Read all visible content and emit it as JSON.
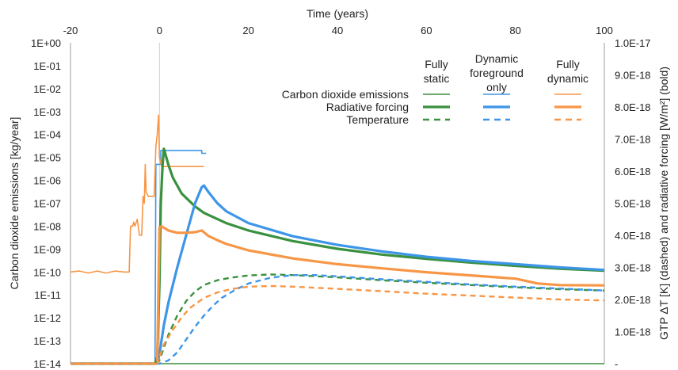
{
  "chart_data": {
    "type": "line",
    "x_axis": {
      "label": "Time (years)",
      "position": "top",
      "range": [
        -20,
        100
      ],
      "ticks": [
        -20,
        0,
        20,
        40,
        60,
        80,
        100
      ],
      "tick_labels": [
        "-20",
        "0",
        "20",
        "40",
        "60",
        "80",
        "100"
      ]
    },
    "y_axis_left": {
      "label": "Carbon dioxide emissions [kg/year]",
      "scale": "log",
      "range": [
        1e-14,
        1
      ],
      "tick_labels": [
        "1E+00",
        "1E-01",
        "1E-02",
        "1E-03",
        "1E-04",
        "1E-05",
        "1E-06",
        "1E-07",
        "1E-08",
        "1E-09",
        "1E-10",
        "1E-11",
        "1E-12",
        "1E-13",
        "1E-14"
      ]
    },
    "y_axis_right": {
      "label": "GTP ΔT [K] (dashed) and radiative forcing [W/m²] (bold)",
      "scale": "linear",
      "range": [
        0,
        1e-17
      ],
      "tick_labels": [
        "1.0E-17",
        "9.0E-18",
        "8.0E-18",
        "7.0E-18",
        "6.0E-18",
        "5.0E-18",
        "4.0E-18",
        "3.0E-18",
        "2.0E-18",
        "1.0E-18",
        "-"
      ]
    },
    "grid": "none",
    "legend": {
      "placement": "top-right",
      "column_headers": [
        "Fully static",
        "Dynamic foreground only",
        "Fully dynamic"
      ],
      "column_header_lines": [
        [
          "Fully",
          "static"
        ],
        [
          "Dynamic",
          "foreground",
          "only"
        ],
        [
          "Fully",
          "dynamic"
        ]
      ],
      "row_labels": [
        "Carbon dioxide emissions",
        "Radiative forcing",
        "Temperature"
      ],
      "colors": [
        "#3a913f",
        "#3d95e8",
        "#f79646"
      ]
    },
    "series": [
      {
        "name": "Carbon dioxide emissions — Fully static",
        "axis": "left",
        "style": "thin",
        "color": "#3a913f",
        "points": [
          [
            -20,
            1e-14
          ],
          [
            100,
            1e-14
          ]
        ]
      },
      {
        "name": "Carbon dioxide emissions — Dynamic foreground only",
        "axis": "left",
        "style": "thin",
        "color": "#3d95e8",
        "points": [
          [
            -20,
            1e-14
          ],
          [
            -1,
            1e-14
          ],
          [
            -0.8,
            5e-06
          ],
          [
            0.3,
            5e-06
          ],
          [
            0.3,
            2e-05
          ],
          [
            9.5,
            2e-05
          ],
          [
            9.5,
            1.5e-05
          ],
          [
            10.5,
            1.5e-05
          ]
        ]
      },
      {
        "name": "Carbon dioxide emissions — Fully dynamic",
        "axis": "left",
        "style": "thin",
        "color": "#f79646",
        "points": [
          [
            -20,
            1e-10
          ],
          [
            -18,
            1.1e-10
          ],
          [
            -16,
            9e-11
          ],
          [
            -14,
            1.1e-10
          ],
          [
            -12,
            9e-11
          ],
          [
            -10,
            1.1e-10
          ],
          [
            -8,
            1e-10
          ],
          [
            -6.8,
            1e-10
          ],
          [
            -6.5,
            1e-08
          ],
          [
            -6,
            1e-08
          ],
          [
            -5.8,
            1.5e-08
          ],
          [
            -5.5,
            1e-08
          ],
          [
            -5,
            2e-08
          ],
          [
            -4.5,
            4e-09
          ],
          [
            -4,
            4e-09
          ],
          [
            -3.7,
            2e-07
          ],
          [
            -3.4,
            1e-07
          ],
          [
            -3.2,
            5e-06
          ],
          [
            -3,
            3e-07
          ],
          [
            -2.5,
            2e-07
          ],
          [
            -1.5,
            2e-07
          ],
          [
            -1.2,
            2e-07
          ],
          [
            -0.8,
            3e-05
          ],
          [
            -0.5,
            0.0001
          ],
          [
            -0.2,
            0.0007
          ],
          [
            0,
            1e-05
          ],
          [
            0.5,
            4e-06
          ],
          [
            10,
            4e-06
          ]
        ]
      },
      {
        "name": "Radiative forcing — Fully static",
        "axis": "right",
        "style": "bold",
        "color": "#3a913f",
        "points": [
          [
            -20,
            0
          ],
          [
            -1,
            0
          ],
          [
            -0.5,
            2e-19
          ],
          [
            0,
            2.5e-18
          ],
          [
            0.3,
            5e-18
          ],
          [
            0.7,
            6.2e-18
          ],
          [
            1,
            6.7e-18
          ],
          [
            2,
            6.2e-18
          ],
          [
            3,
            5.8e-18
          ],
          [
            5,
            5.3e-18
          ],
          [
            8,
            4.9e-18
          ],
          [
            10,
            4.7e-18
          ],
          [
            15,
            4.38e-18
          ],
          [
            20,
            4.15e-18
          ],
          [
            30,
            3.82e-18
          ],
          [
            40,
            3.58e-18
          ],
          [
            50,
            3.4e-18
          ],
          [
            60,
            3.27e-18
          ],
          [
            70,
            3.15e-18
          ],
          [
            80,
            3.05e-18
          ],
          [
            90,
            2.96e-18
          ],
          [
            100,
            2.9e-18
          ]
        ]
      },
      {
        "name": "Radiative forcing — Dynamic foreground only",
        "axis": "right",
        "style": "bold",
        "color": "#3d95e8",
        "points": [
          [
            -20,
            0
          ],
          [
            -0.5,
            0
          ],
          [
            0,
            3e-19
          ],
          [
            1,
            1.2e-18
          ],
          [
            2,
            1.9e-18
          ],
          [
            4,
            3e-18
          ],
          [
            6,
            4e-18
          ],
          [
            8,
            5e-18
          ],
          [
            9.5,
            5.5e-18
          ],
          [
            10,
            5.55e-18
          ],
          [
            11,
            5.35e-18
          ],
          [
            13,
            5e-18
          ],
          [
            15,
            4.75e-18
          ],
          [
            20,
            4.38e-18
          ],
          [
            30,
            3.97e-18
          ],
          [
            40,
            3.7e-18
          ],
          [
            50,
            3.5e-18
          ],
          [
            60,
            3.33e-18
          ],
          [
            70,
            3.2e-18
          ],
          [
            80,
            3.1e-18
          ],
          [
            90,
            3e-18
          ],
          [
            100,
            2.92e-18
          ]
        ]
      },
      {
        "name": "Radiative forcing — Fully dynamic",
        "axis": "right",
        "style": "bold",
        "color": "#f79646",
        "points": [
          [
            -20,
            0
          ],
          [
            -0.5,
            0
          ],
          [
            0,
            4.25e-18
          ],
          [
            0.5,
            4.28e-18
          ],
          [
            2,
            4.15e-18
          ],
          [
            4,
            4.08e-18
          ],
          [
            6,
            4.08e-18
          ],
          [
            8,
            4.1e-18
          ],
          [
            9.5,
            4.15e-18
          ],
          [
            11,
            3.98e-18
          ],
          [
            13,
            3.85e-18
          ],
          [
            15,
            3.73e-18
          ],
          [
            20,
            3.53e-18
          ],
          [
            30,
            3.28e-18
          ],
          [
            40,
            3.1e-18
          ],
          [
            50,
            2.97e-18
          ],
          [
            60,
            2.85e-18
          ],
          [
            70,
            2.75e-18
          ],
          [
            80,
            2.65e-18
          ],
          [
            85,
            2.5e-18
          ],
          [
            90,
            2.45e-18
          ],
          [
            100,
            2.44e-18
          ]
        ]
      },
      {
        "name": "Temperature — Fully static",
        "axis": "right",
        "style": "dashed",
        "color": "#3a913f",
        "points": [
          [
            -20,
            0
          ],
          [
            -1,
            0
          ],
          [
            0,
            1e-19
          ],
          [
            2,
            9e-19
          ],
          [
            4,
            1.5e-18
          ],
          [
            6,
            1.95e-18
          ],
          [
            8,
            2.25e-18
          ],
          [
            10,
            2.45e-18
          ],
          [
            13,
            2.6e-18
          ],
          [
            16,
            2.68e-18
          ],
          [
            20,
            2.75e-18
          ],
          [
            25,
            2.78e-18
          ],
          [
            30,
            2.76e-18
          ],
          [
            40,
            2.69e-18
          ],
          [
            50,
            2.6e-18
          ],
          [
            60,
            2.52e-18
          ],
          [
            70,
            2.45e-18
          ],
          [
            80,
            2.38e-18
          ],
          [
            90,
            2.32e-18
          ],
          [
            100,
            2.28e-18
          ]
        ]
      },
      {
        "name": "Temperature — Dynamic foreground only",
        "axis": "right",
        "style": "dashed",
        "color": "#3d95e8",
        "points": [
          [
            -20,
            0
          ],
          [
            0,
            0
          ],
          [
            2,
            1e-19
          ],
          [
            4,
            3.5e-19
          ],
          [
            6,
            7.5e-19
          ],
          [
            8,
            1.15e-18
          ],
          [
            10,
            1.5e-18
          ],
          [
            12,
            1.8e-18
          ],
          [
            14,
            2.05e-18
          ],
          [
            17,
            2.3e-18
          ],
          [
            20,
            2.5e-18
          ],
          [
            25,
            2.68e-18
          ],
          [
            30,
            2.76e-18
          ],
          [
            35,
            2.76e-18
          ],
          [
            40,
            2.72e-18
          ],
          [
            50,
            2.63e-18
          ],
          [
            60,
            2.55e-18
          ],
          [
            70,
            2.47e-18
          ],
          [
            80,
            2.4e-18
          ],
          [
            90,
            2.34e-18
          ],
          [
            100,
            2.28e-18
          ]
        ]
      },
      {
        "name": "Temperature — Fully dynamic",
        "axis": "right",
        "style": "dashed",
        "color": "#f79646",
        "points": [
          [
            -20,
            0
          ],
          [
            -0.5,
            0
          ],
          [
            1,
            6e-19
          ],
          [
            3,
            1.05e-18
          ],
          [
            5,
            1.45e-18
          ],
          [
            7,
            1.75e-18
          ],
          [
            10,
            2.05e-18
          ],
          [
            13,
            2.22e-18
          ],
          [
            16,
            2.32e-18
          ],
          [
            20,
            2.4e-18
          ],
          [
            25,
            2.42e-18
          ],
          [
            30,
            2.4e-18
          ],
          [
            40,
            2.33e-18
          ],
          [
            50,
            2.26e-18
          ],
          [
            60,
            2.18e-18
          ],
          [
            70,
            2.12e-18
          ],
          [
            80,
            2.06e-18
          ],
          [
            90,
            2e-18
          ],
          [
            100,
            1.97e-18
          ]
        ]
      }
    ]
  }
}
